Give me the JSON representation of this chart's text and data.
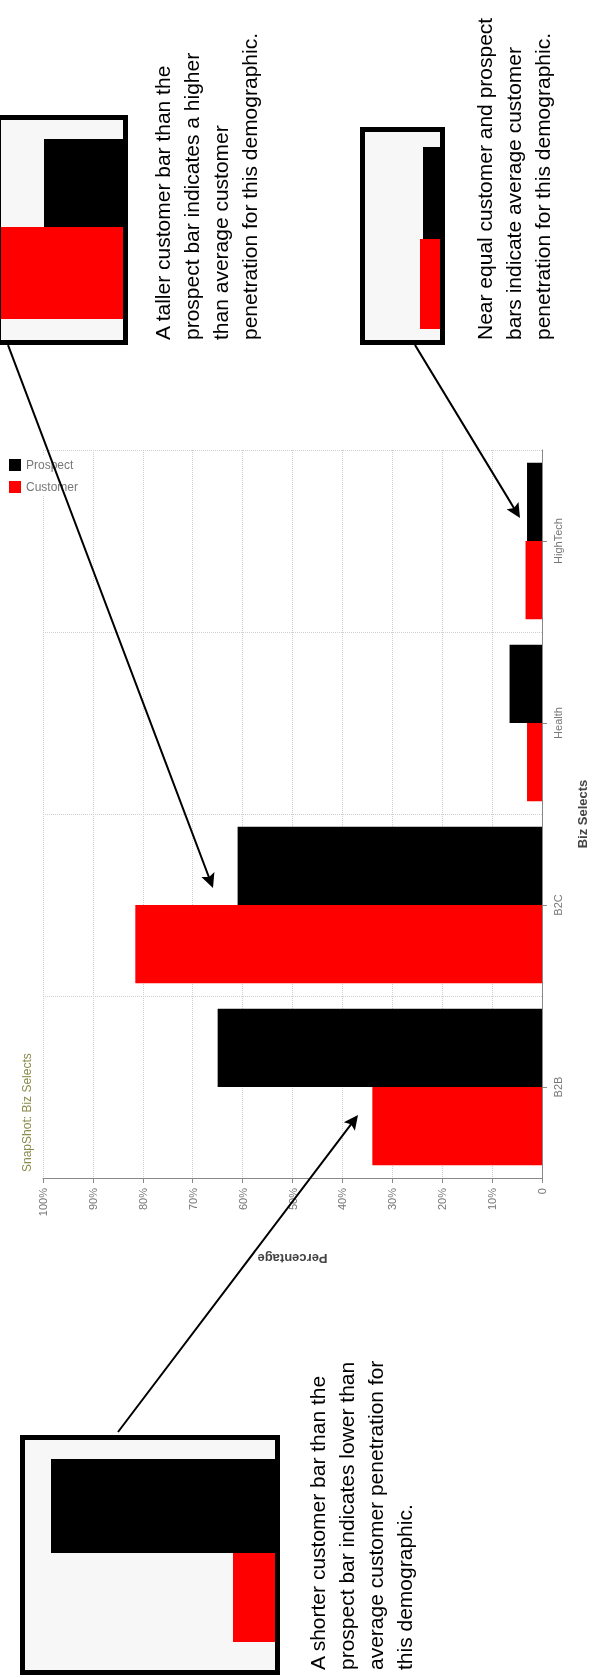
{
  "chart_data": {
    "type": "bar",
    "orientation": "horizontal",
    "title": "SnapShot: Biz Selects",
    "xlabel": "Percentage",
    "ylabel": "Biz Selects",
    "categories": [
      "HighTech",
      "Health",
      "B2C",
      "B2B"
    ],
    "series": [
      {
        "name": "Prospect",
        "color": "#000000",
        "values": [
          3,
          6.5,
          61,
          65
        ]
      },
      {
        "name": "Customer",
        "color": "#ff0000",
        "values": [
          3.3,
          3,
          81.5,
          34
        ]
      }
    ],
    "xlim": [
      100,
      0
    ],
    "xticks": [
      0,
      {
        "value": 10,
        "label": "10%"
      },
      {
        "value": 20,
        "label": "20%"
      },
      {
        "value": 30,
        "label": "30%"
      },
      {
        "value": 40,
        "label": "40%"
      },
      {
        "value": 50,
        "label": "50%"
      },
      {
        "value": 60,
        "label": "60%"
      },
      {
        "value": 70,
        "label": "70%"
      },
      {
        "value": 80,
        "label": "80%"
      },
      {
        "value": 90,
        "label": "90%"
      },
      {
        "value": 100,
        "label": "100%"
      }
    ],
    "grid": true,
    "legend": "top left",
    "annotations": [
      "A shorter customer bar than the prospect bar indicates lower than average customer penetration for this demographic.",
      "A taller customer bar than the prospect bar indicates a higher than average customer penetration for this demographic.",
      "Near equal customer and prospect bars indicate average customer penetration for this demographic."
    ]
  }
}
